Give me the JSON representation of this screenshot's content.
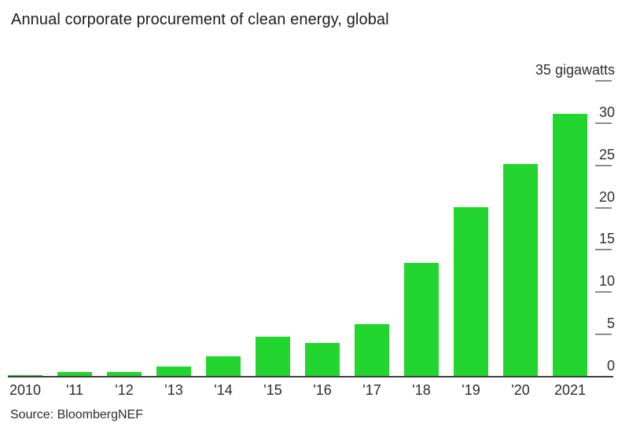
{
  "title": "Annual corporate procurement of clean energy, global",
  "source": "Source: BloombergNEF",
  "colors": {
    "bar_green": "#22d52f",
    "axis_line": "#3f3f3f",
    "tick_dash": "#8c8c8c",
    "text_dark": "#2b2b2b",
    "background": "#ffffff"
  },
  "chart_data": {
    "type": "bar",
    "title": "Annual corporate procurement of clean energy, global",
    "categories": [
      "2010",
      "'11",
      "'12",
      "'13",
      "'14",
      "'15",
      "'16",
      "'17",
      "'18",
      "'19",
      "'20",
      "2021"
    ],
    "values": [
      0.1,
      0.5,
      0.5,
      1.1,
      2.3,
      4.6,
      3.9,
      6.1,
      13.4,
      20.0,
      25.1,
      31.0
    ],
    "unit": "gigawatts",
    "xlabel": "",
    "ylabel": "gigawatts",
    "ylim": [
      0,
      35
    ],
    "yticks": [
      35,
      30,
      25,
      20,
      15,
      10,
      5,
      0
    ],
    "ytick_top_label": "35 gigawatts",
    "tick_label_side": "right",
    "grid": false,
    "legend": false,
    "bar_color": "#22d52f",
    "source": "Source: BloombergNEF"
  }
}
